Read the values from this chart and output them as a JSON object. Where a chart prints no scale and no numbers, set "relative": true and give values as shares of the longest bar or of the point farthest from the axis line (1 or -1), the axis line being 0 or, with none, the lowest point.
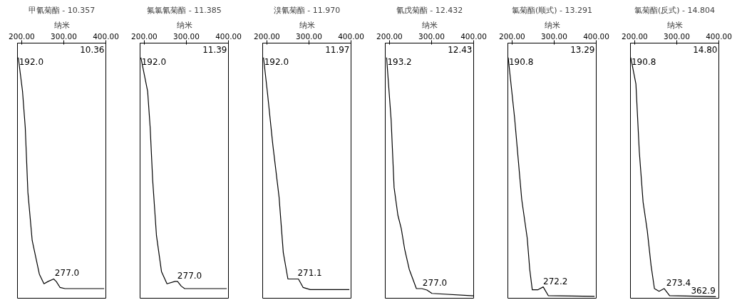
{
  "chart_data": [
    {
      "type": "line",
      "title": "甲氰菊酯 - 10.357",
      "xlabel": "纳米",
      "relative": true,
      "xlim": [
        190,
        400
      ],
      "xticks": [
        {
          "value": 200,
          "label": "200.00"
        },
        {
          "value": 300,
          "label": "300.00"
        },
        {
          "value": 400,
          "label": "400.00"
        }
      ],
      "grid": false,
      "x": [
        192,
        202,
        208.5,
        214.8,
        225,
        242,
        253,
        263,
        276,
        282,
        291,
        303,
        396
      ],
      "series": [
        {
          "color": "#000000",
          "values": [
            1,
            0.86,
            0.71,
            0.44,
            0.24,
            0.1,
            0.06,
            0.07,
            0.08,
            0.07,
            0.045,
            0.04,
            0.04
          ]
        }
      ],
      "annotations": [
        {
          "text": "192.0",
          "x": 192,
          "y": 1
        },
        {
          "text": "277.0",
          "x": 277,
          "y": 0.08
        },
        "10.36"
      ]
    },
    {
      "type": "line",
      "title": "氟氯氰菊酯 - 11.385",
      "xlabel": "纳米",
      "relative": true,
      "xlim": [
        190,
        400
      ],
      "xticks": [
        {
          "value": 200,
          "label": "200.00"
        },
        {
          "value": 300,
          "label": "300.00"
        },
        {
          "value": 400,
          "label": "400.00"
        }
      ],
      "grid": false,
      "x": [
        192,
        208,
        214,
        220,
        229,
        241,
        254,
        273,
        279,
        288,
        296,
        396
      ],
      "series": [
        {
          "color": "#000000",
          "values": [
            1,
            0.86,
            0.71,
            0.49,
            0.26,
            0.11,
            0.06,
            0.07,
            0.07,
            0.05,
            0.04,
            0.04
          ]
        }
      ],
      "annotations": [
        {
          "text": "192.0",
          "x": 192,
          "y": 1
        },
        {
          "text": "277.0",
          "x": 277,
          "y": 0.07
        },
        "11.39"
      ]
    },
    {
      "type": "line",
      "title": "溴氰菊酯 - 11.970",
      "xlabel": "纳米",
      "relative": true,
      "xlim": [
        190,
        400
      ],
      "xticks": [
        {
          "value": 200,
          "label": "200.00"
        },
        {
          "value": 300,
          "label": "300.00"
        },
        {
          "value": 400,
          "label": "400.00"
        }
      ],
      "grid": false,
      "x": [
        192,
        201,
        214,
        229,
        239,
        250,
        275,
        286,
        303,
        396
      ],
      "series": [
        {
          "color": "#000000",
          "values": [
            1,
            0.86,
            0.64,
            0.42,
            0.19,
            0.08,
            0.08,
            0.045,
            0.036,
            0.036
          ]
        }
      ],
      "annotations": [
        {
          "text": "192.0",
          "x": 192,
          "y": 1
        },
        {
          "text": "271.1",
          "x": 271.1,
          "y": 0.08
        },
        "11.97"
      ]
    },
    {
      "type": "line",
      "title": "氰戊菊酯 - 12.432",
      "xlabel": "纳米",
      "relative": true,
      "xlim": [
        190,
        400
      ],
      "xticks": [
        {
          "value": 200,
          "label": "200.00"
        },
        {
          "value": 300,
          "label": "300.00"
        },
        {
          "value": 400,
          "label": "400.00"
        }
      ],
      "grid": false,
      "x": [
        193.2,
        204,
        211,
        220,
        228,
        236,
        247,
        264,
        277,
        289,
        301,
        400
      ],
      "series": [
        {
          "color": "#000000",
          "values": [
            1,
            0.74,
            0.46,
            0.345,
            0.29,
            0.205,
            0.12,
            0.04,
            0.04,
            0.034,
            0.02,
            0.01
          ]
        }
      ],
      "annotations": [
        {
          "text": "193.2",
          "x": 193.2,
          "y": 1
        },
        {
          "text": "277.0",
          "x": 277,
          "y": 0.04
        },
        "12.43"
      ]
    },
    {
      "type": "line",
      "title": "氯菊酯(顺式) - 13.291",
      "xlabel": "纳米",
      "relative": true,
      "xlim": [
        190,
        400
      ],
      "xticks": [
        {
          "value": 200,
          "label": "200.00"
        },
        {
          "value": 300,
          "label": "300.00"
        },
        {
          "value": 400,
          "label": "400.00"
        }
      ],
      "grid": false,
      "x": [
        190.8,
        206,
        214,
        223,
        236,
        242,
        248,
        261,
        274,
        286,
        396
      ],
      "series": [
        {
          "color": "#000000",
          "values": [
            1,
            0.75,
            0.59,
            0.41,
            0.25,
            0.12,
            0.035,
            0.035,
            0.047,
            0.011,
            0.008
          ]
        }
      ],
      "annotations": [
        {
          "text": "190.8",
          "x": 190.8,
          "y": 1
        },
        {
          "text": "272.2",
          "x": 272.2,
          "y": 0.047
        },
        "13.29"
      ]
    },
    {
      "type": "line",
      "title": "氯菊酯(反式) - 14.804",
      "xlabel": "纳米",
      "relative": true,
      "xlim": [
        190,
        400
      ],
      "xticks": [
        {
          "value": 200,
          "label": "200.00"
        },
        {
          "value": 300,
          "label": "300.00"
        },
        {
          "value": 400,
          "label": "400.00"
        }
      ],
      "grid": false,
      "x": [
        190.8,
        203,
        211,
        220,
        230,
        239,
        247,
        258,
        270,
        283,
        362.9,
        393
      ],
      "series": [
        {
          "color": "#000000",
          "values": [
            1,
            0.89,
            0.61,
            0.4,
            0.28,
            0.136,
            0.04,
            0.029,
            0.04,
            0.011,
            0.008,
            0.006
          ]
        }
      ],
      "annotations": [
        {
          "text": "190.8",
          "x": 190.8,
          "y": 1
        },
        {
          "text": "273.4",
          "x": 273.4,
          "y": 0.04
        },
        {
          "text": "362.9",
          "x": 362.9,
          "y": 0.008
        },
        "14.80"
      ]
    }
  ]
}
